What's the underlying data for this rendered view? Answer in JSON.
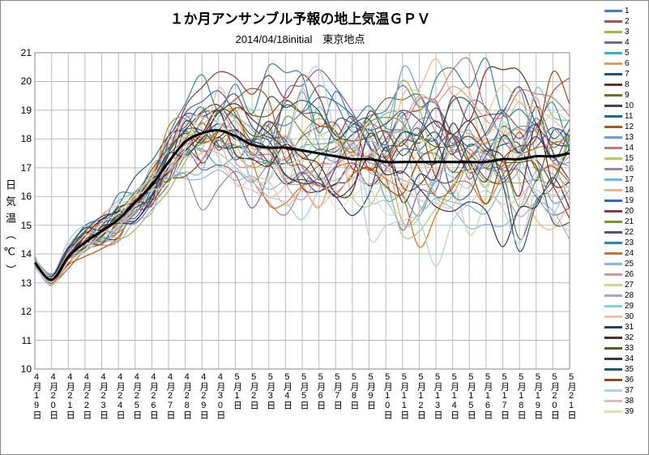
{
  "title": "１か月アンサンブル予報の地上気温ＧＰＶ",
  "subtitle": "2014/04/18initial　東京地点",
  "ylabel": "日 気 温 （ ℃ ）",
  "chart": {
    "type": "line",
    "ylim": [
      10,
      21
    ],
    "ytick_step": 1,
    "background_color": "#ffffff",
    "grid_color": "#bbbbbb",
    "title_fontsize": 17,
    "label_fontsize": 13,
    "tick_fontsize": 11,
    "mean_color": "#000000",
    "mean_width": 3,
    "line_width": 1.2,
    "x_labels": [
      "4月19日",
      "4月20日",
      "4月21日",
      "4月22日",
      "4月23日",
      "4月24日",
      "4月25日",
      "4月26日",
      "4月27日",
      "4月28日",
      "4月29日",
      "4月30日",
      "5月1日",
      "5月2日",
      "5月3日",
      "5月4日",
      "5月5日",
      "5月6日",
      "5月7日",
      "5月8日",
      "5月9日",
      "5月10日",
      "5月11日",
      "5月12日",
      "5月13日",
      "5月14日",
      "5月15日",
      "5月16日",
      "5月17日",
      "5月18日",
      "5月19日",
      "5月20日",
      "5月21日"
    ],
    "colors": [
      "#4a7ebb",
      "#be4b48",
      "#98b954",
      "#7d60a0",
      "#46aac5",
      "#f79646",
      "#2c4d75",
      "#772c2a",
      "#5f7530",
      "#4c3b62",
      "#276a7c",
      "#b65708",
      "#729aca",
      "#cd7371",
      "#afc97a",
      "#9983b5",
      "#6fbdd1",
      "#f9b277",
      "#3a67a0",
      "#963634",
      "#77933c",
      "#604a7b",
      "#31859c",
      "#e46c0a",
      "#95b3d7",
      "#d99694",
      "#c3d69b",
      "#b3a2c7",
      "#93cddd",
      "#fac090",
      "#254061",
      "#632523",
      "#4f6228",
      "#403152",
      "#215968",
      "#984807",
      "#b8cce4",
      "#e6b9b8",
      "#d7e4bc"
    ],
    "mean": [
      13.7,
      13.1,
      13.9,
      14.4,
      14.8,
      15.2,
      15.8,
      16.4,
      17.2,
      17.9,
      18.2,
      18.3,
      18.1,
      17.8,
      17.7,
      17.7,
      17.6,
      17.5,
      17.4,
      17.3,
      17.3,
      17.2,
      17.2,
      17.2,
      17.2,
      17.2,
      17.2,
      17.2,
      17.3,
      17.3,
      17.4,
      17.4,
      17.5
    ],
    "members": {
      "seed": 20140418,
      "count": 39,
      "spread": [
        0.35,
        0.35,
        0.4,
        0.45,
        0.5,
        0.55,
        0.6,
        0.7,
        0.85,
        1.0,
        1.1,
        1.15,
        1.2,
        1.25,
        1.3,
        1.35,
        1.4,
        1.45,
        1.5,
        1.55,
        1.6,
        1.6,
        1.6,
        1.6,
        1.6,
        1.6,
        1.6,
        1.6,
        1.6,
        1.6,
        1.6,
        1.6,
        1.6
      ]
    },
    "legend_labels": [
      "1",
      "2",
      "3",
      "4",
      "5",
      "6",
      "7",
      "8",
      "9",
      "10",
      "11",
      "12",
      "13",
      "14",
      "15",
      "16",
      "17",
      "18",
      "19",
      "20",
      "21",
      "22",
      "23",
      "24",
      "25",
      "26",
      "27",
      "28",
      "29",
      "30",
      "31",
      "32",
      "33",
      "34",
      "35",
      "36",
      "37",
      "38",
      "39"
    ]
  }
}
